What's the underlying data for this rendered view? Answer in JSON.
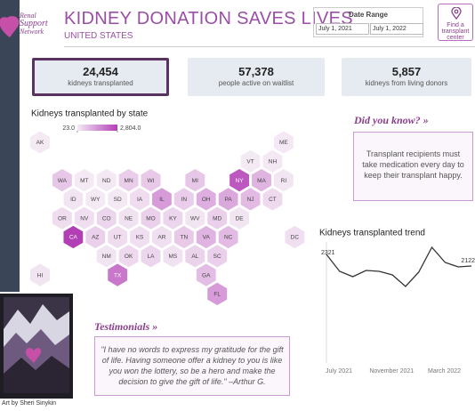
{
  "header": {
    "logo_lines": [
      "Renal",
      "Support",
      "Network"
    ],
    "title": "KIDNEY DONATION SAVES LIVES",
    "subtitle": "UNITED STATES"
  },
  "date_range": {
    "label": "Date Range",
    "start": "July 1, 2021",
    "end": "July 1, 2022"
  },
  "button": {
    "label": "Find a transplant center"
  },
  "kpis": [
    {
      "value": "24,454",
      "label": "kidneys transplanted"
    },
    {
      "value": "57,378",
      "label": "people active on waitlist"
    },
    {
      "value": "5,857",
      "label": "kidneys from living donors"
    }
  ],
  "did_you_know": {
    "title": "Did you know? »",
    "text": "Transplant recipients must take medication every day to keep their transplant happy."
  },
  "testimonial": {
    "title": "Testimonials »",
    "text": "\"I have no words to express my gratitude for the gift of life. Having someone offer a kidney to you is like you won the lottery, so be a hero and make the decision to give the gift of life.\" –Arthur G."
  },
  "art_credit": "Art by Sheri Sinykin",
  "chart_data": [
    {
      "type": "hexmap",
      "title": "Kidneys transplanted by state",
      "categories": [
        "AK",
        "ME",
        "VT",
        "NH",
        "WA",
        "MT",
        "ND",
        "MN",
        "WI",
        "MI",
        "NY",
        "MA",
        "RI",
        "ID",
        "WY",
        "SD",
        "IA",
        "IL",
        "IN",
        "OH",
        "PA",
        "NJ",
        "CT",
        "OR",
        "NV",
        "CO",
        "NE",
        "MO",
        "KY",
        "WV",
        "MD",
        "DE",
        "CA",
        "AZ",
        "UT",
        "KS",
        "AR",
        "TN",
        "VA",
        "NC",
        "DC",
        "NM",
        "OK",
        "LA",
        "MS",
        "AL",
        "SC",
        "HI",
        "TX",
        "GA",
        "FL"
      ],
      "values": [
        30,
        60,
        25,
        60,
        600,
        40,
        50,
        500,
        550,
        600,
        2400,
        900,
        80,
        100,
        23,
        60,
        250,
        1300,
        500,
        1000,
        1100,
        800,
        300,
        250,
        200,
        350,
        150,
        450,
        350,
        100,
        450,
        100,
        2804,
        450,
        250,
        200,
        200,
        550,
        900,
        800,
        200,
        100,
        300,
        350,
        150,
        400,
        450,
        100,
        1900,
        750,
        1300
      ],
      "color_scale": {
        "colors": [
          "#f4eaf4",
          "#b33fb7"
        ],
        "range": [
          23,
          2804
        ],
        "ticks": [
          {
            "value": 23,
            "label": "23.0"
          },
          {
            "value": 2804,
            "label": "2,804.0"
          }
        ]
      }
    },
    {
      "type": "line",
      "title": "Kidneys transplanted trend",
      "categories": [
        "July 2021",
        null,
        null,
        null,
        "November 2021",
        null,
        null,
        null,
        "March 2022",
        null,
        null,
        null
      ],
      "values": [
        2321,
        2030,
        1938,
        2045,
        2030,
        1969,
        1770,
        2015,
        2443,
        2183,
        2107,
        2122
      ],
      "color": "#333333"
    }
  ]
}
